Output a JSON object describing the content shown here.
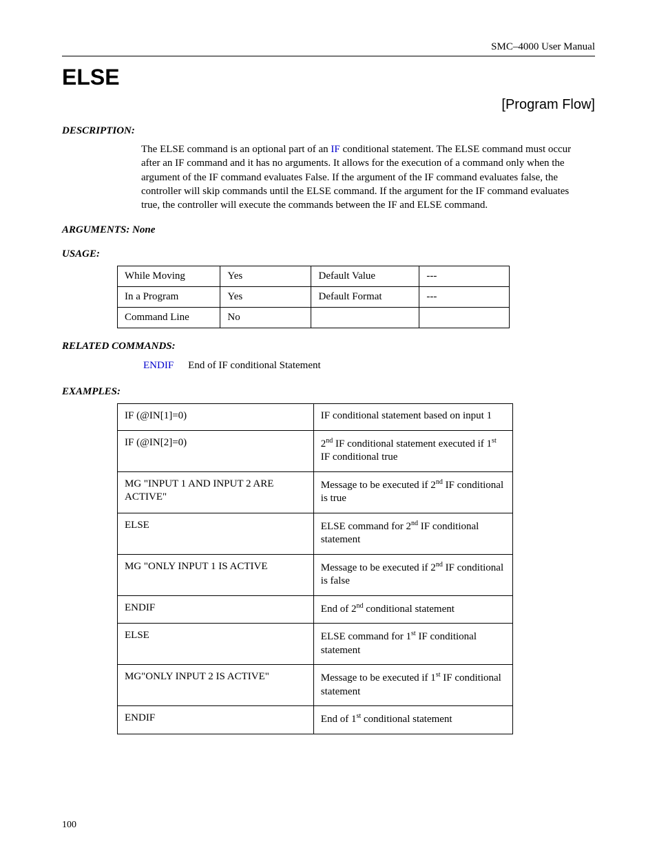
{
  "header": {
    "manual": "SMC–4000 User Manual"
  },
  "page": {
    "number": "100"
  },
  "command": {
    "name": "ELSE",
    "category": "[Program Flow]"
  },
  "sections": {
    "description_label": "DESCRIPTION:",
    "arguments_label": "ARGUMENTS: None",
    "usage_label": "USAGE:",
    "related_label": "RELATED COMMANDS:",
    "examples_label": "EXAMPLES:"
  },
  "description": {
    "p1a": "The ELSE command is an optional part of an ",
    "if_link": "IF",
    "p1b": " conditional statement. The ELSE command must occur after an IF command and it has no arguments. It allows for the execution of a command only when the argument of the IF command evaluates False. If the argument of the IF command evaluates false, the controller will skip commands until the ELSE command. If the argument for the IF command evaluates true, the controller will execute the commands between the IF and ELSE command."
  },
  "usage": {
    "r1": {
      "c1": "While Moving",
      "c2": "Yes",
      "c3": "Default Value",
      "c4": "---"
    },
    "r2": {
      "c1": "In a Program",
      "c2": "Yes",
      "c3": "Default Format",
      "c4": "---"
    },
    "r3": {
      "c1": "Command Line",
      "c2": "No",
      "c3": "",
      "c4": ""
    }
  },
  "related": {
    "endif_link": "ENDIF",
    "endif_desc": "End of IF conditional Statement"
  },
  "examples": {
    "r1": {
      "code": "IF (@IN[1]=0)",
      "desc": "IF conditional statement based on input 1"
    },
    "r2": {
      "code": "IF (@IN[2]=0)",
      "desc_a": "2",
      "sup1": "nd",
      "desc_b": " IF conditional statement executed if 1",
      "sup2": "st",
      "desc_c": " IF conditional true"
    },
    "r3": {
      "code": "MG \"INPUT 1 AND INPUT 2 ARE ACTIVE\"",
      "desc_a": "Message to be executed if 2",
      "sup1": "nd",
      "desc_b": " IF conditional is true"
    },
    "r4": {
      "code": "ELSE",
      "desc_a": "ELSE command for 2",
      "sup1": "nd",
      "desc_b": " IF conditional statement"
    },
    "r5": {
      "code": "MG \"ONLY INPUT 1 IS ACTIVE",
      "desc_a": "Message to be executed if 2",
      "sup1": "nd",
      "desc_b": " IF conditional is false"
    },
    "r6": {
      "code": "ENDIF",
      "desc_a": "End of 2",
      "sup1": "nd",
      "desc_b": " conditional statement"
    },
    "r7": {
      "code": "ELSE",
      "desc_a": "ELSE command for 1",
      "sup1": "st",
      "desc_b": " IF conditional statement"
    },
    "r8": {
      "code": "MG\"ONLY INPUT 2 IS ACTIVE\"",
      "desc_a": "Message to be executed if 1",
      "sup1": "st",
      "desc_b": " IF conditional statement"
    },
    "r9": {
      "code": "ENDIF",
      "desc_a": "End of 1",
      "sup1": "st",
      "desc_b": " conditional statement"
    }
  }
}
